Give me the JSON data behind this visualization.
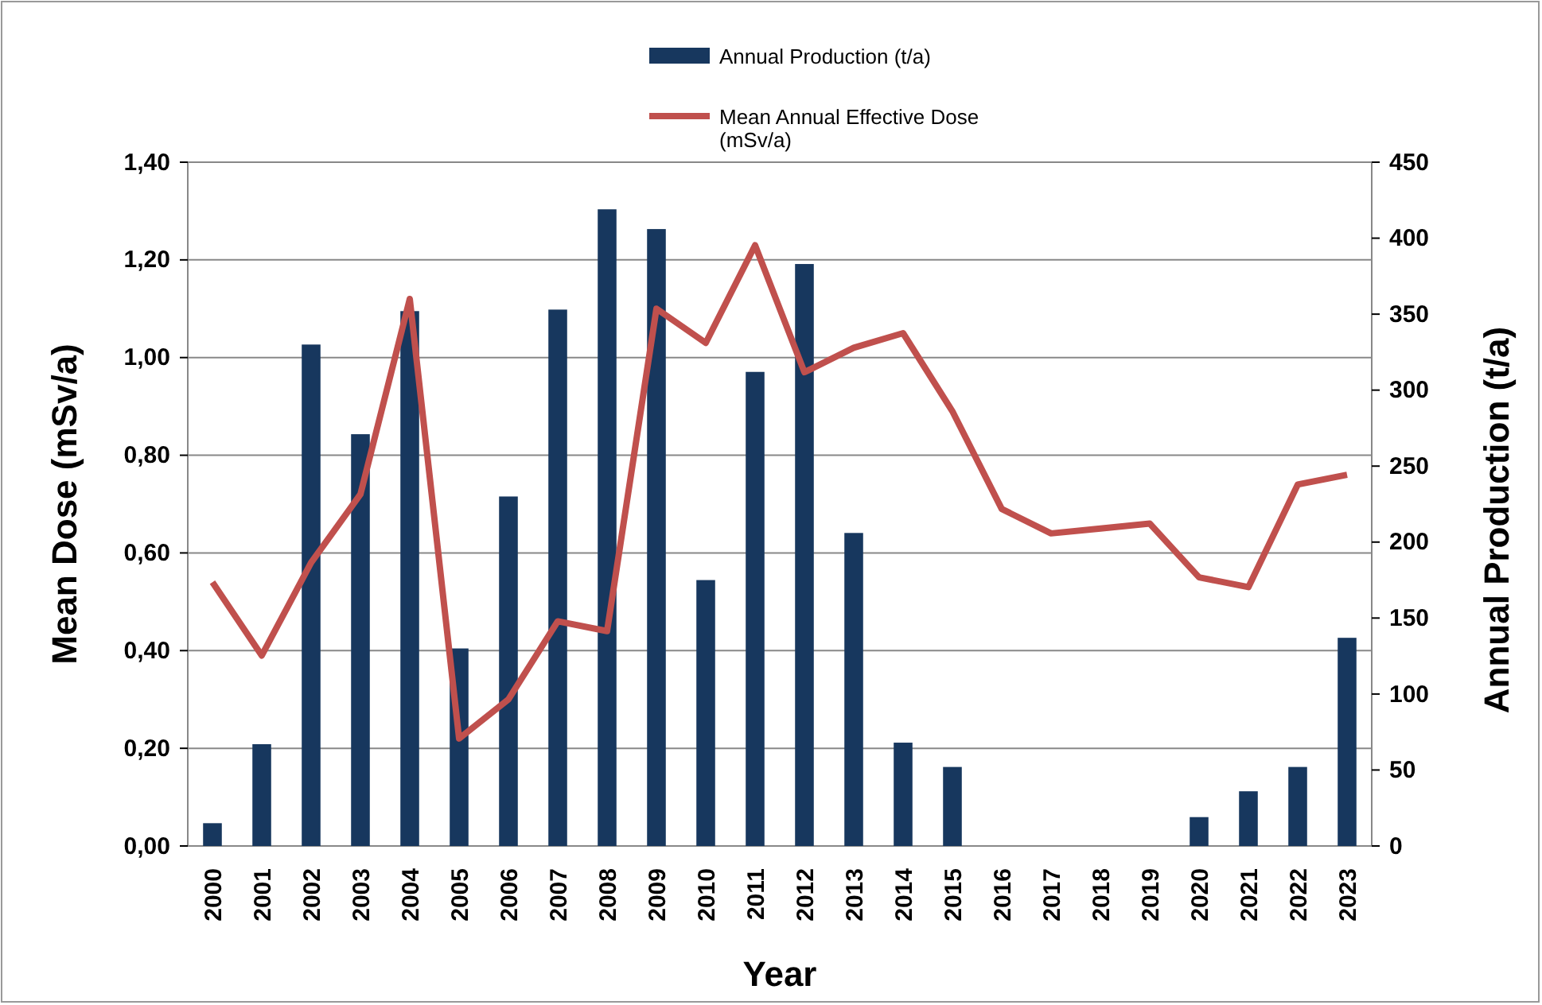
{
  "chart_data": {
    "type": "bar",
    "xlabel": "Year",
    "ylabel": "Mean Dose (mSv/a)",
    "y2label": "Annual Production (t/a)",
    "categories": [
      "2000",
      "2001",
      "2002",
      "2003",
      "2004",
      "2005",
      "2006",
      "2007",
      "2008",
      "2009",
      "2010",
      "2011",
      "2012",
      "2013",
      "2014",
      "2015",
      "2016",
      "2017",
      "2018",
      "2019",
      "2020",
      "2021",
      "2022",
      "2023"
    ],
    "series": [
      {
        "name": "Annual Production (t/a)",
        "axis": "y2",
        "color": "#17375e",
        "values": [
          15,
          67,
          330,
          271,
          352,
          130,
          230,
          353,
          419,
          406,
          175,
          312,
          383,
          206,
          68,
          52,
          0,
          0,
          0,
          0,
          19,
          36,
          52,
          137
        ]
      },
      {
        "name": "Mean Annual Effective Dose (mSv/a)",
        "type": "line",
        "axis": "y",
        "color": "#c0504d",
        "values": [
          0.54,
          0.39,
          0.58,
          0.72,
          1.12,
          0.22,
          0.3,
          0.46,
          0.44,
          1.1,
          1.03,
          1.23,
          0.97,
          1.02,
          1.05,
          0.89,
          0.69,
          0.64,
          0.65,
          0.66,
          0.55,
          0.53,
          0.74,
          0.76
        ]
      }
    ],
    "ylim": [
      0,
      1.4
    ],
    "yticks": [
      {
        "value": 0,
        "label": "0,00"
      },
      {
        "value": 0.2,
        "label": "0,20"
      },
      {
        "value": 0.4,
        "label": "0,40"
      },
      {
        "value": 0.6,
        "label": "0,60"
      },
      {
        "value": 0.8,
        "label": "0,80"
      },
      {
        "value": 1,
        "label": "1,00"
      },
      {
        "value": 1.2,
        "label": "1,20"
      },
      {
        "value": 1.4,
        "label": "1,40"
      }
    ],
    "y2lim": [
      0,
      450
    ],
    "y2ticks": [
      0,
      50,
      100,
      150,
      200,
      250,
      300,
      350,
      400,
      450
    ],
    "grid": "y",
    "legend": "top",
    "marker": "none",
    "line_style": "solid"
  }
}
